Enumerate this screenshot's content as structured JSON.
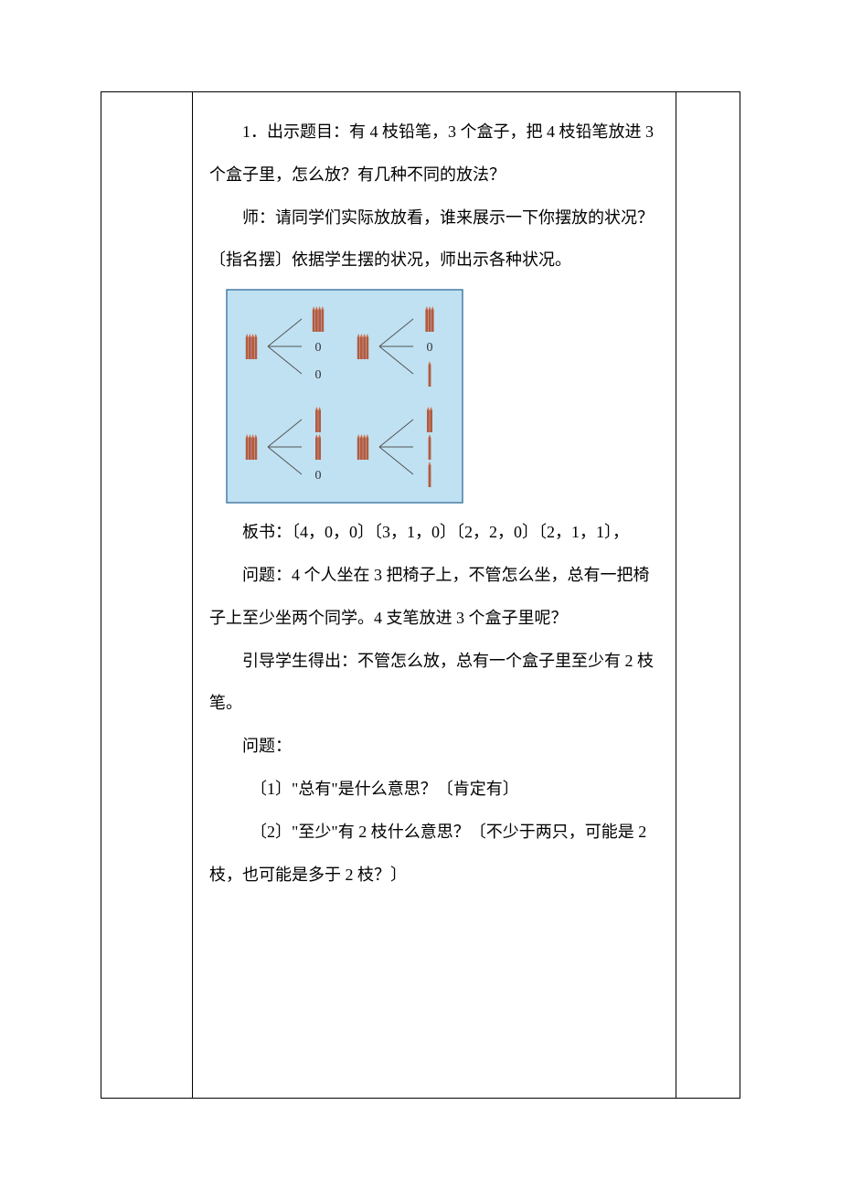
{
  "content": {
    "p1": "1．出示题目：有 4 枝铅笔，3 个盒子，把 4 枝铅笔放进 3 个盒子里，怎么放？有几种不同的放法？",
    "p2": "师：请同学们实际放放看，谁来展示一下你摆放的状况？〔指名摆〕依据学生摆的状况，师出示各种状况。",
    "p3": "板书：〔4，0，0〕〔3，1，0〕〔2，2，0〕〔2，1，1〕，",
    "p4": "问题：4 个人坐在 3 把椅子上，不管怎么坐，总有一把椅子上至少坐两个同学。4 支笔放进 3 个盒子里呢？",
    "p5": "引导学生得出：不管怎么放，总有一个盒子里至少有 2 枝笔。",
    "p6": "问题：",
    "p7": "〔1〕\"总有\"是什么意思？〔肯定有〕",
    "p8": "〔2〕\"至少\"有 2 枝什么意思？〔不少于两只，可能是 2 枝，也可能是多于 2 枝？〕"
  },
  "figure": {
    "bg_color": "#bfe1f2",
    "border_color": "#4a7ea8",
    "pencil_top": "#c96b4a",
    "pencil_body": "#b45a3f",
    "line_color": "#555555",
    "zero_color": "#333333",
    "groups": [
      {
        "root": 4,
        "branches": [
          4,
          0,
          0
        ]
      },
      {
        "root": 4,
        "branches": [
          3,
          0,
          1
        ]
      },
      {
        "root": 4,
        "branches": [
          2,
          2,
          0
        ]
      },
      {
        "root": 4,
        "branches": [
          2,
          1,
          1
        ]
      }
    ]
  }
}
